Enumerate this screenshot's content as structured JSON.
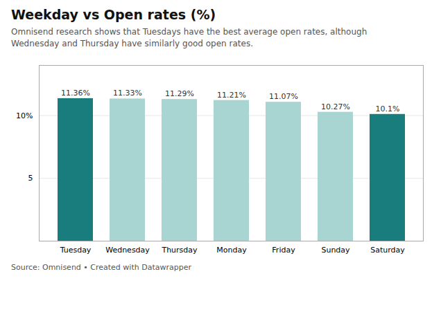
{
  "chart_data": {
    "type": "bar",
    "title": "Weekday vs Open rates (%)",
    "subtitle": "Omnisend research shows that Tuesdays have the best average open rates, although\nWednesday and Thursday have similarly good open rates.",
    "caption": "Source: Omnisend • Created with Datawrapper",
    "categories": [
      "Tuesday",
      "Wednesday",
      "Thursday",
      "Monday",
      "Friday",
      "Sunday",
      "Saturday"
    ],
    "values": [
      11.36,
      11.33,
      11.29,
      11.21,
      11.07,
      10.27,
      10.1
    ],
    "value_labels": [
      "11.36%",
      "11.33%",
      "11.29%",
      "11.21%",
      "11.07%",
      "10.27%",
      "10.1%"
    ],
    "colors": [
      "#1a7d7d",
      "#a8d5d1",
      "#a8d5d1",
      "#a8d5d1",
      "#a8d5d1",
      "#a8d5d1",
      "#1a7d7d"
    ],
    "ylim": [
      0,
      14
    ],
    "yticks": [
      {
        "value": 0,
        "label": null
      },
      5,
      {
        "value": 10,
        "label": "10%"
      }
    ],
    "grid": true,
    "data_labels": true
  }
}
